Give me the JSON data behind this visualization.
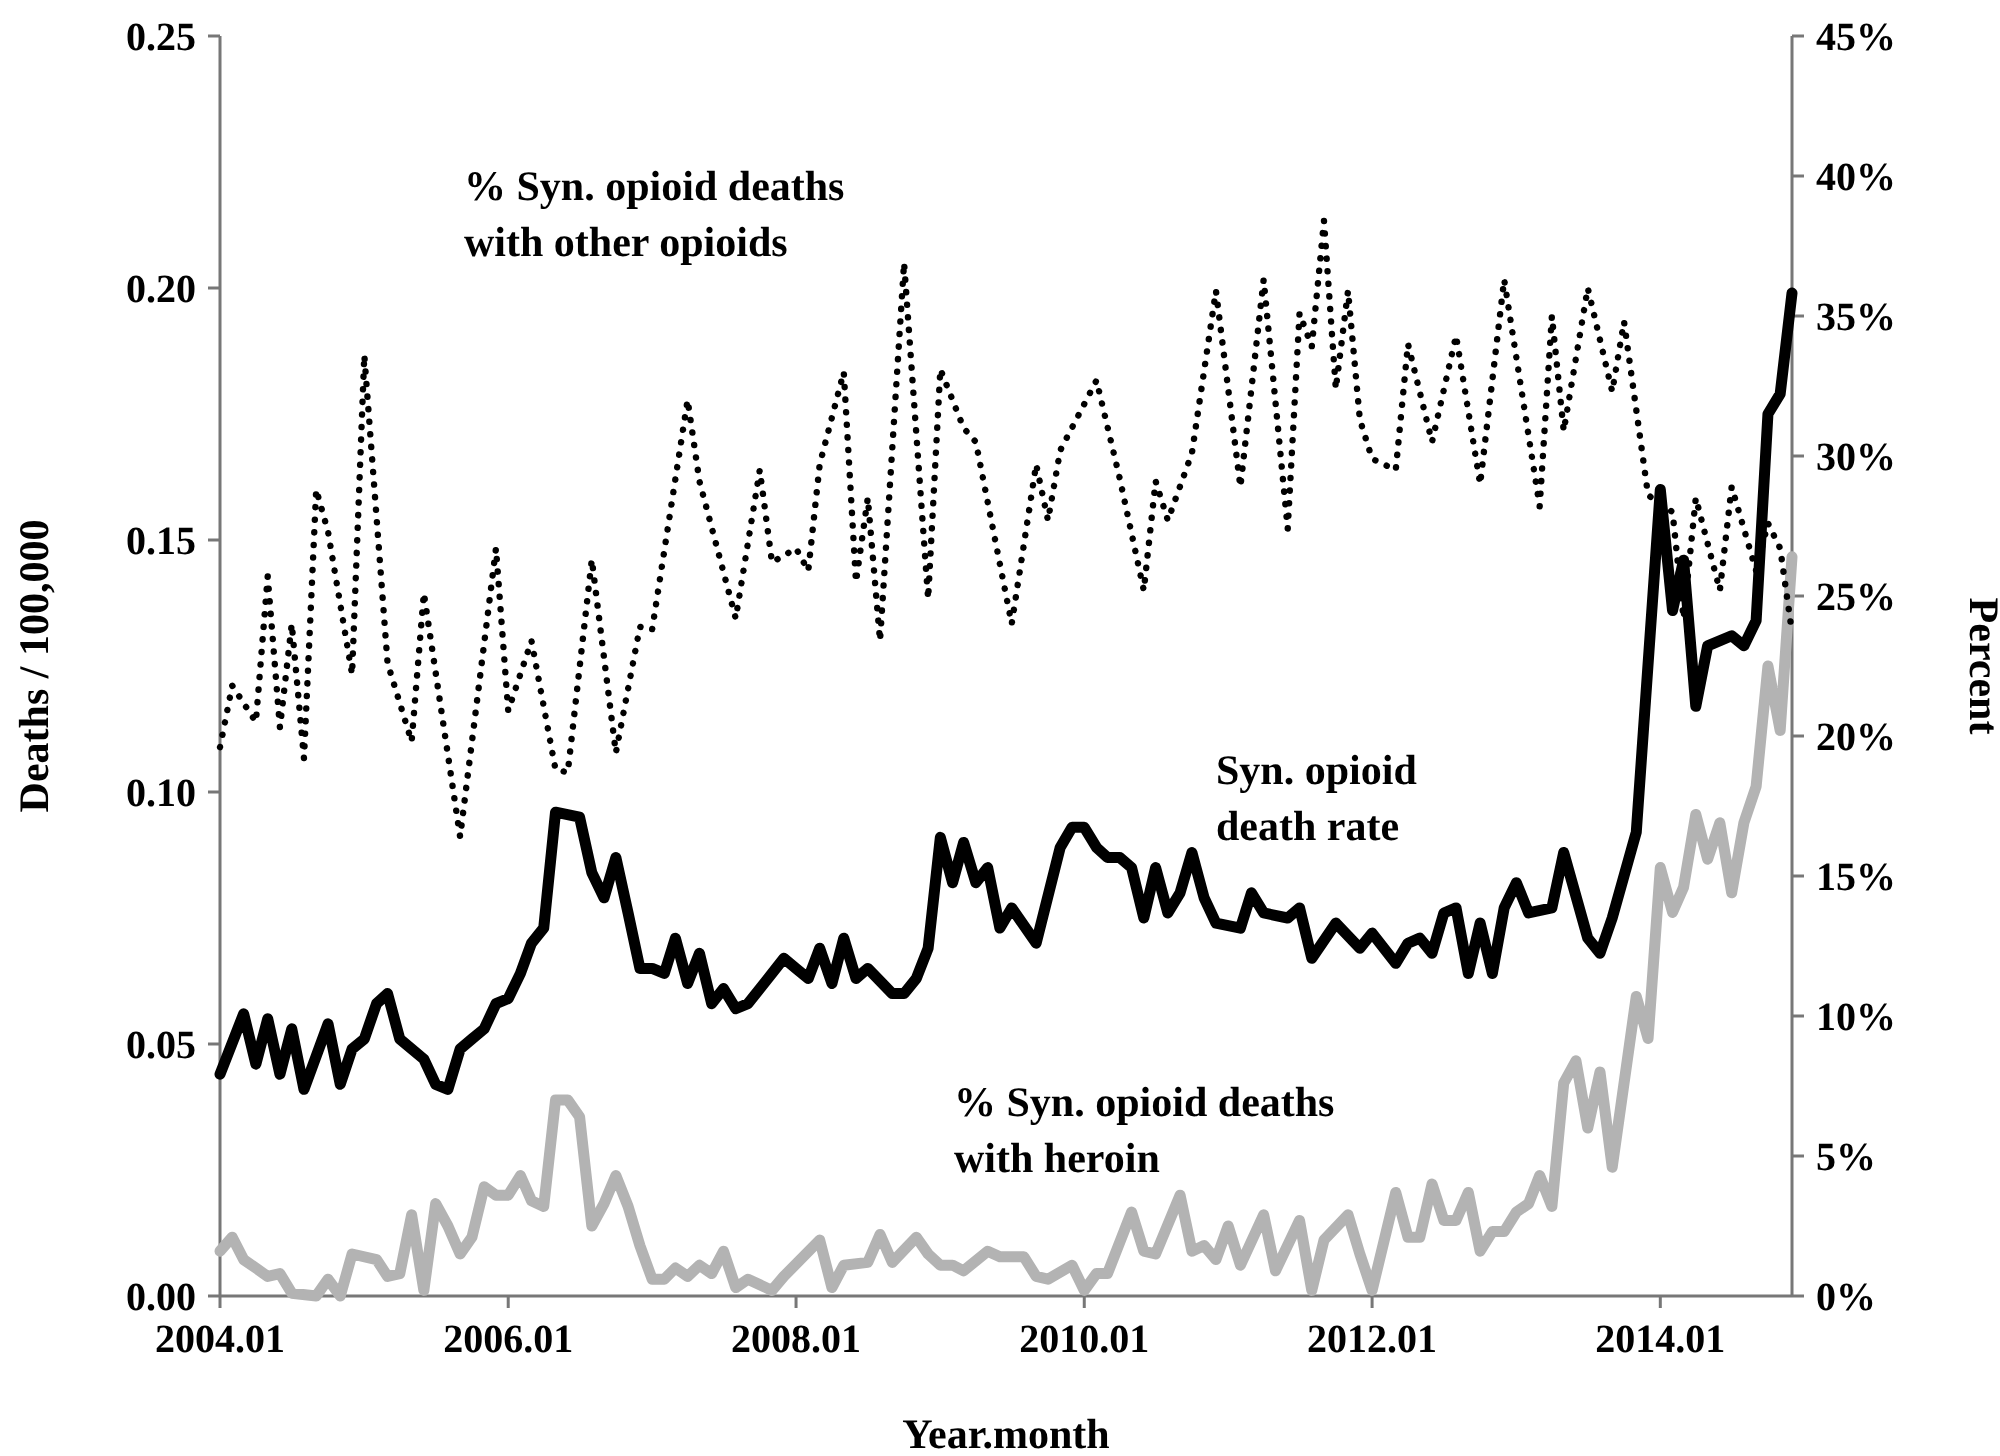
{
  "chart_data": {
    "type": "line",
    "xlabel": "Year.month",
    "ylabel": "Deaths / 100,000",
    "y2label": "Percent",
    "xlim": [
      "2004-01",
      "2014-12"
    ],
    "xticks": [
      {
        "value": "2004-01",
        "label": "2004.01"
      },
      {
        "value": "2006-01",
        "label": "2006.01"
      },
      {
        "value": "2008-01",
        "label": "2008.01"
      },
      {
        "value": "2010-01",
        "label": "2010.01"
      },
      {
        "value": "2012-01",
        "label": "2012.01"
      },
      {
        "value": "2014-01",
        "label": "2014.01"
      }
    ],
    "ylim": [
      0,
      0.25
    ],
    "yticks": [
      {
        "value": 0,
        "label": "0.00"
      },
      {
        "value": 0.05,
        "label": "0.05"
      },
      {
        "value": 0.1,
        "label": "0.10"
      },
      {
        "value": 0.15,
        "label": "0.15"
      },
      {
        "value": 0.2,
        "label": "0.20"
      },
      {
        "value": 0.25,
        "label": "0.25"
      }
    ],
    "y2lim": [
      0,
      45
    ],
    "y2ticks": [
      {
        "value": 0,
        "label": "0%"
      },
      {
        "value": 5,
        "label": "5%"
      },
      {
        "value": 10,
        "label": "10%"
      },
      {
        "value": 15,
        "label": "15%"
      },
      {
        "value": 20,
        "label": "20%"
      },
      {
        "value": 25,
        "label": "25%"
      },
      {
        "value": 30,
        "label": "30%"
      },
      {
        "value": 35,
        "label": "35%"
      },
      {
        "value": 40,
        "label": "40%"
      },
      {
        "value": 45,
        "label": "45%"
      }
    ],
    "grid": false,
    "legend": false,
    "marker": "none",
    "series": [
      {
        "name": "Syn. opioid death rate",
        "color": "#000000",
        "line_style": "solid",
        "x": [
          "2004-01",
          "2004-03",
          "2004-04",
          "2004-05",
          "2004-06",
          "2004-07",
          "2004-08",
          "2004-10",
          "2004-11",
          "2004-12",
          "2005-01",
          "2005-02",
          "2005-03",
          "2005-04",
          "2005-06",
          "2005-07",
          "2005-08",
          "2005-09",
          "2005-10",
          "2005-11",
          "2005-12",
          "2006-01",
          "2006-02",
          "2006-03",
          "2006-04",
          "2006-05",
          "2006-07",
          "2006-08",
          "2006-09",
          "2006-10",
          "2006-11",
          "2006-12",
          "2007-01",
          "2007-02",
          "2007-03",
          "2007-04",
          "2007-05",
          "2007-06",
          "2007-07",
          "2007-08",
          "2007-09",
          "2007-11",
          "2007-12",
          "2008-01",
          "2008-02",
          "2008-03",
          "2008-04",
          "2008-05",
          "2008-06",
          "2008-07",
          "2008-09",
          "2008-10",
          "2008-11",
          "2008-12",
          "2009-01",
          "2009-02",
          "2009-03",
          "2009-04",
          "2009-05",
          "2009-06",
          "2009-07",
          "2009-09",
          "2009-11",
          "2009-12",
          "2010-01",
          "2010-02",
          "2010-03",
          "2010-04",
          "2010-05",
          "2010-06",
          "2010-07",
          "2010-08",
          "2010-09",
          "2010-10",
          "2010-11",
          "2010-12",
          "2011-02",
          "2011-03",
          "2011-04",
          "2011-06",
          "2011-07",
          "2011-08",
          "2011-10",
          "2011-12",
          "2012-01",
          "2012-03",
          "2012-04",
          "2012-05",
          "2012-06",
          "2012-07",
          "2012-08",
          "2012-09",
          "2012-10",
          "2012-11",
          "2012-12",
          "2013-01",
          "2013-02",
          "2013-04",
          "2013-05",
          "2013-07",
          "2013-08",
          "2013-09",
          "2013-11",
          "2014-01",
          "2014-02",
          "2014-03",
          "2014-04",
          "2014-05",
          "2014-07",
          "2014-08",
          "2014-09",
          "2014-10",
          "2014-11",
          "2014-12"
        ],
        "values": [
          0.044,
          0.056,
          0.046,
          0.055,
          0.044,
          0.053,
          0.041,
          0.054,
          0.042,
          0.049,
          0.051,
          0.058,
          0.06,
          0.051,
          0.047,
          0.042,
          0.041,
          0.049,
          0.051,
          0.053,
          0.058,
          0.059,
          0.064,
          0.07,
          0.073,
          0.096,
          0.095,
          0.084,
          0.079,
          0.087,
          0.076,
          0.065,
          0.065,
          0.064,
          0.071,
          0.062,
          0.068,
          0.058,
          0.061,
          0.057,
          0.058,
          0.064,
          0.067,
          0.065,
          0.063,
          0.069,
          0.062,
          0.071,
          0.063,
          0.065,
          0.06,
          0.06,
          0.063,
          0.069,
          0.091,
          0.082,
          0.09,
          0.082,
          0.085,
          0.073,
          0.077,
          0.07,
          0.089,
          0.093,
          0.093,
          0.089,
          0.087,
          0.087,
          0.085,
          0.075,
          0.085,
          0.076,
          0.08,
          0.088,
          0.079,
          0.074,
          0.073,
          0.08,
          0.076,
          0.075,
          0.077,
          0.067,
          0.074,
          0.069,
          0.072,
          0.066,
          0.07,
          0.071,
          0.068,
          0.076,
          0.077,
          0.064,
          0.074,
          0.064,
          0.077,
          0.082,
          0.076,
          0.077,
          0.088,
          0.071,
          0.068,
          0.075,
          0.092,
          0.16,
          0.136,
          0.146,
          0.117,
          0.129,
          0.131,
          0.129,
          0.134,
          0.175,
          0.179,
          0.199
        ]
      },
      {
        "name": "% Syn. opioid deaths with heroin",
        "color": "#b3b3b3",
        "axis": "y2",
        "line_style": "solid",
        "x": [
          "2004-01",
          "2004-02",
          "2004-03",
          "2004-04",
          "2004-05",
          "2004-06",
          "2004-07",
          "2004-09",
          "2004-10",
          "2004-11",
          "2004-12",
          "2005-02",
          "2005-03",
          "2005-04",
          "2005-05",
          "2005-06",
          "2005-07",
          "2005-08",
          "2005-09",
          "2005-10",
          "2005-11",
          "2005-12",
          "2006-01",
          "2006-02",
          "2006-03",
          "2006-04",
          "2006-05",
          "2006-06",
          "2006-07",
          "2006-08",
          "2006-09",
          "2006-10",
          "2006-11",
          "2006-12",
          "2007-01",
          "2007-02",
          "2007-03",
          "2007-04",
          "2007-05",
          "2007-06",
          "2007-07",
          "2007-08",
          "2007-09",
          "2007-11",
          "2007-12",
          "2008-03",
          "2008-04",
          "2008-05",
          "2008-07",
          "2008-08",
          "2008-09",
          "2008-11",
          "2008-12",
          "2009-01",
          "2009-02",
          "2009-03",
          "2009-05",
          "2009-06",
          "2009-08",
          "2009-09",
          "2009-10",
          "2009-12",
          "2010-01",
          "2010-02",
          "2010-03",
          "2010-05",
          "2010-06",
          "2010-07",
          "2010-09",
          "2010-10",
          "2010-11",
          "2010-12",
          "2011-01",
          "2011-02",
          "2011-04",
          "2011-05",
          "2011-07",
          "2011-08",
          "2011-09",
          "2011-11",
          "2011-12",
          "2012-01",
          "2012-03",
          "2012-04",
          "2012-05",
          "2012-06",
          "2012-07",
          "2012-08",
          "2012-09",
          "2012-10",
          "2012-11",
          "2012-12",
          "2013-01",
          "2013-02",
          "2013-03",
          "2013-04",
          "2013-05",
          "2013-06",
          "2013-07",
          "2013-08",
          "2013-09",
          "2013-11",
          "2013-12",
          "2014-01",
          "2014-02",
          "2014-03",
          "2014-04",
          "2014-05",
          "2014-06",
          "2014-07",
          "2014-08",
          "2014-09",
          "2014-10",
          "2014-11",
          "2014-12"
        ],
        "values": [
          1.6,
          2.1,
          1.3,
          1.0,
          0.7,
          0.8,
          0.1,
          0.0,
          0.6,
          0.0,
          1.5,
          1.3,
          0.7,
          0.8,
          2.9,
          0.2,
          3.3,
          2.5,
          1.5,
          2.1,
          3.9,
          3.6,
          3.6,
          4.3,
          3.4,
          3.2,
          7.0,
          7.0,
          6.4,
          2.5,
          3.3,
          4.3,
          3.2,
          1.8,
          0.6,
          0.6,
          1.0,
          0.7,
          1.1,
          0.8,
          1.6,
          0.3,
          0.6,
          0.2,
          0.7,
          2.0,
          0.3,
          1.1,
          1.2,
          2.2,
          1.2,
          2.1,
          1.5,
          1.1,
          1.1,
          0.9,
          1.6,
          1.4,
          1.4,
          0.7,
          0.6,
          1.1,
          0.2,
          0.8,
          0.8,
          3.0,
          1.6,
          1.5,
          3.6,
          1.6,
          1.8,
          1.3,
          2.5,
          1.1,
          2.9,
          0.9,
          2.7,
          0.2,
          2.0,
          2.9,
          1.5,
          0.2,
          3.7,
          2.1,
          2.1,
          4.0,
          2.7,
          2.7,
          3.7,
          1.6,
          2.3,
          2.3,
          3.0,
          3.3,
          4.3,
          3.2,
          7.6,
          8.4,
          6.0,
          8.0,
          4.6,
          10.7,
          9.2,
          15.3,
          13.7,
          14.6,
          17.2,
          15.6,
          16.9,
          14.4,
          16.9,
          18.2,
          22.5,
          20.2,
          26.4
        ]
      },
      {
        "name": "% Syn. opioid deaths with other opioids",
        "color": "#000000",
        "axis": "y2",
        "line_style": "dotted",
        "x": [
          "2004-01",
          "2004-02",
          "2004-04",
          "2004-05",
          "2004-06",
          "2004-07",
          "2004-08",
          "2004-09",
          "2004-10",
          "2004-12",
          "2005-01",
          "2005-03",
          "2005-05",
          "2005-06",
          "2005-09",
          "2005-12",
          "2006-01",
          "2006-03",
          "2006-05",
          "2006-06",
          "2006-08",
          "2006-10",
          "2006-12",
          "2007-01",
          "2007-04",
          "2007-05",
          "2007-08",
          "2007-10",
          "2007-11",
          "2008-01",
          "2008-02",
          "2008-03",
          "2008-05",
          "2008-06",
          "2008-07",
          "2008-08",
          "2008-10",
          "2008-12",
          "2009-01",
          "2009-03",
          "2009-04",
          "2009-07",
          "2009-09",
          "2009-10",
          "2009-11",
          "2010-02",
          "2010-04",
          "2010-06",
          "2010-07",
          "2010-08",
          "2010-10",
          "2010-12",
          "2011-02",
          "2011-04",
          "2011-06",
          "2011-07",
          "2011-08",
          "2011-09",
          "2011-10",
          "2011-11",
          "2011-12",
          "2012-01",
          "2012-03",
          "2012-04",
          "2012-06",
          "2012-08",
          "2012-10",
          "2012-12",
          "2013-03",
          "2013-04",
          "2013-05",
          "2013-07",
          "2013-09",
          "2013-10",
          "2013-12",
          "2014-02",
          "2014-03",
          "2014-04",
          "2014-06",
          "2014-07",
          "2014-08",
          "2014-09",
          "2014-10",
          "2014-11",
          "2014-12"
        ],
        "values": [
          19.6,
          21.8,
          20.5,
          25.7,
          20.3,
          24.0,
          19.2,
          28.8,
          27.3,
          22.2,
          33.6,
          22.6,
          19.8,
          25.1,
          16.4,
          26.7,
          20.9,
          23.4,
          18.8,
          18.7,
          26.3,
          19.4,
          23.9,
          23.8,
          32.0,
          29.1,
          24.2,
          29.5,
          26.2,
          26.7,
          25.9,
          29.7,
          33.0,
          25.5,
          28.5,
          23.4,
          36.9,
          24.9,
          33.1,
          31.0,
          30.5,
          24.0,
          29.7,
          27.7,
          30.2,
          32.7,
          29.2,
          25.2,
          29.1,
          27.7,
          30.1,
          35.9,
          28.9,
          36.3,
          27.4,
          35.1,
          33.9,
          38.4,
          32.4,
          35.9,
          31.3,
          29.9,
          29.5,
          34.0,
          30.5,
          34.3,
          29.0,
          36.3,
          28.2,
          35.0,
          30.9,
          36.0,
          32.3,
          34.8,
          28.6,
          28.0,
          24.2,
          28.5,
          25.2,
          28.9,
          27.4,
          25.9,
          27.6,
          26.7,
          23.7
        ]
      }
    ]
  }
}
